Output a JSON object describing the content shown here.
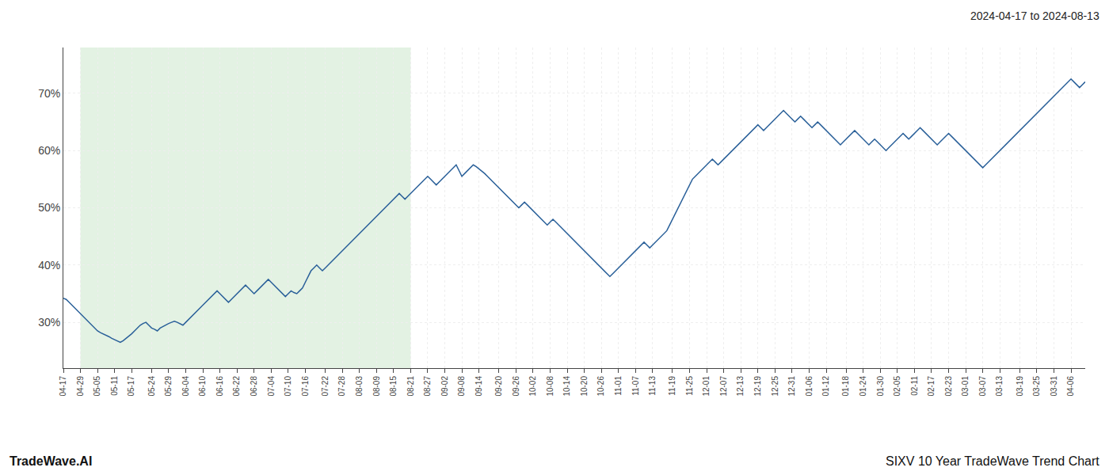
{
  "chart_data": {
    "type": "line",
    "categories": [
      "04-17",
      null,
      null,
      null,
      null,
      null,
      "04-29",
      null,
      null,
      null,
      null,
      null,
      "05-05",
      null,
      null,
      null,
      null,
      null,
      "05-11",
      null,
      null,
      null,
      null,
      null,
      "05-17",
      null,
      null,
      null,
      null,
      null,
      null,
      "05-24",
      null,
      null,
      null,
      null,
      null,
      "05-29",
      null,
      null,
      null,
      null,
      null,
      "06-04",
      null,
      null,
      null,
      null,
      null,
      "06-10",
      null,
      null,
      null,
      null,
      null,
      "06-16",
      null,
      null,
      null,
      null,
      null,
      "06-22",
      null,
      null,
      null,
      null,
      null,
      "06-28",
      null,
      null,
      null,
      null,
      null,
      "07-04",
      null,
      null,
      null,
      null,
      null,
      "07-10",
      null,
      null,
      null,
      null,
      null,
      "07-16",
      null,
      null,
      null,
      null,
      null,
      null,
      "07-22",
      null,
      null,
      null,
      null,
      null,
      "07-28",
      null,
      null,
      null,
      null,
      null,
      "08-03",
      null,
      null,
      null,
      null,
      null,
      "08-09",
      null,
      null,
      null,
      null,
      null,
      "08-15",
      null,
      null,
      null,
      null,
      null,
      "08-21",
      null,
      null,
      null,
      null,
      null,
      "08-27",
      null,
      null,
      null,
      null,
      null,
      "09-02",
      null,
      null,
      null,
      null,
      null,
      "09-08",
      null,
      null,
      null,
      null,
      null,
      "09-14",
      null,
      null,
      null,
      null,
      null,
      null,
      "09-20",
      null,
      null,
      null,
      null,
      null,
      "09-26",
      null,
      null,
      null,
      null,
      null,
      "10-02",
      null,
      null,
      null,
      null,
      null,
      "10-08",
      null,
      null,
      null,
      null,
      null,
      "10-14",
      null,
      null,
      null,
      null,
      null,
      "10-20",
      null,
      null,
      null,
      null,
      null,
      "10-26",
      null,
      null,
      null,
      null,
      null,
      "11-01",
      null,
      null,
      null,
      null,
      null,
      "11-07",
      null,
      null,
      null,
      null,
      null,
      "11-13",
      null,
      null,
      null,
      null,
      null,
      null,
      "11-19",
      null,
      null,
      null,
      null,
      null,
      "11-25",
      null,
      null,
      null,
      null,
      null,
      "12-01",
      null,
      null,
      null,
      null,
      null,
      "12-07",
      null,
      null,
      null,
      null,
      null,
      "12-13",
      null,
      null,
      null,
      null,
      null,
      "12-19",
      null,
      null,
      null,
      null,
      null,
      "12-25",
      null,
      null,
      null,
      null,
      null,
      "12-31",
      null,
      null,
      null,
      null,
      null,
      "01-06",
      null,
      null,
      null,
      null,
      null,
      "01-12",
      null,
      null,
      null,
      null,
      null,
      null,
      "01-18",
      null,
      null,
      null,
      null,
      null,
      "01-24",
      null,
      null,
      null,
      null,
      null,
      "01-30",
      null,
      null,
      null,
      null,
      null,
      "02-05",
      null,
      null,
      null,
      null,
      null,
      "02-11",
      null,
      null,
      null,
      null,
      null,
      "02-17",
      null,
      null,
      null,
      null,
      null,
      "02-23",
      null,
      null,
      null,
      null,
      null,
      "03-01",
      null,
      null,
      null,
      null,
      null,
      "03-07",
      null,
      null,
      null,
      null,
      null,
      "03-13",
      null,
      null,
      null,
      null,
      null,
      null,
      "03-19",
      null,
      null,
      null,
      null,
      null,
      "03-25",
      null,
      null,
      null,
      null,
      null,
      "03-31",
      null,
      null,
      null,
      null,
      null,
      "04-06",
      null,
      null,
      null,
      null,
      null
    ],
    "values": [
      34.2,
      34.0,
      33.5,
      33.0,
      32.5,
      32.0,
      31.5,
      31.0,
      30.5,
      30.0,
      29.5,
      29.0,
      28.5,
      28.2,
      28.0,
      27.8,
      27.5,
      27.2,
      27.0,
      26.8,
      26.5,
      26.8,
      27.2,
      27.5,
      28.0,
      28.5,
      29.0,
      29.5,
      29.8,
      30.0,
      29.5,
      29.0,
      28.8,
      28.5,
      29.0,
      29.3,
      29.5,
      29.8,
      30.0,
      30.2,
      30.0,
      29.8,
      29.5,
      30.0,
      30.5,
      31.0,
      31.5,
      32.0,
      32.5,
      33.0,
      33.5,
      34.0,
      34.5,
      35.0,
      35.5,
      35.0,
      34.5,
      34.0,
      33.5,
      34.0,
      34.5,
      35.0,
      35.5,
      36.0,
      36.5,
      36.0,
      35.5,
      35.0,
      35.5,
      36.0,
      36.5,
      37.0,
      37.5,
      37.0,
      36.5,
      36.0,
      35.5,
      35.0,
      34.5,
      35.0,
      35.5,
      35.2,
      35.0,
      35.5,
      36.0,
      37.0,
      38.0,
      39.0,
      39.5,
      40.0,
      39.5,
      39.0,
      39.5,
      40.0,
      40.5,
      41.0,
      41.5,
      42.0,
      42.5,
      43.0,
      43.5,
      44.0,
      44.5,
      45.0,
      45.5,
      46.0,
      46.5,
      47.0,
      47.5,
      48.0,
      48.5,
      49.0,
      49.5,
      50.0,
      50.5,
      51.0,
      51.5,
      52.0,
      52.5,
      52.0,
      51.5,
      52.0,
      52.5,
      53.0,
      53.5,
      54.0,
      54.5,
      55.0,
      55.5,
      55.0,
      54.5,
      54.0,
      54.5,
      55.0,
      55.5,
      56.0,
      56.5,
      57.0,
      57.5,
      56.5,
      55.5,
      56.0,
      56.5,
      57.0,
      57.5,
      57.2,
      56.8,
      56.5,
      56.0,
      55.5,
      55.0,
      54.5,
      54.0,
      53.5,
      53.0,
      52.5,
      52.0,
      51.5,
      51.0,
      50.5,
      50.0,
      50.5,
      51.0,
      50.5,
      50.0,
      49.5,
      49.0,
      48.5,
      48.0,
      47.5,
      47.0,
      47.5,
      48.0,
      47.5,
      47.0,
      46.5,
      46.0,
      45.5,
      45.0,
      44.5,
      44.0,
      43.5,
      43.0,
      42.5,
      42.0,
      41.5,
      41.0,
      40.5,
      40.0,
      39.5,
      39.0,
      38.5,
      38.0,
      38.5,
      39.0,
      39.5,
      40.0,
      40.5,
      41.0,
      41.5,
      42.0,
      42.5,
      43.0,
      43.5,
      44.0,
      43.5,
      43.0,
      43.5,
      44.0,
      44.5,
      45.0,
      45.5,
      46.0,
      47.0,
      48.0,
      49.0,
      50.0,
      51.0,
      52.0,
      53.0,
      54.0,
      55.0,
      55.5,
      56.0,
      56.5,
      57.0,
      57.5,
      58.0,
      58.5,
      58.0,
      57.5,
      58.0,
      58.5,
      59.0,
      59.5,
      60.0,
      60.5,
      61.0,
      61.5,
      62.0,
      62.5,
      63.0,
      63.5,
      64.0,
      64.5,
      64.0,
      63.5,
      64.0,
      64.5,
      65.0,
      65.5,
      66.0,
      66.5,
      67.0,
      66.5,
      66.0,
      65.5,
      65.0,
      65.5,
      66.0,
      65.5,
      65.0,
      64.5,
      64.0,
      64.5,
      65.0,
      64.5,
      64.0,
      63.5,
      63.0,
      62.5,
      62.0,
      61.5,
      61.0,
      61.5,
      62.0,
      62.5,
      63.0,
      63.5,
      63.0,
      62.5,
      62.0,
      61.5,
      61.0,
      61.5,
      62.0,
      61.5,
      61.0,
      60.5,
      60.0,
      60.5,
      61.0,
      61.5,
      62.0,
      62.5,
      63.0,
      62.5,
      62.0,
      62.5,
      63.0,
      63.5,
      64.0,
      63.5,
      63.0,
      62.5,
      62.0,
      61.5,
      61.0,
      61.5,
      62.0,
      62.5,
      63.0,
      62.5,
      62.0,
      61.5,
      61.0,
      60.5,
      60.0,
      59.5,
      59.0,
      58.5,
      58.0,
      57.5,
      57.0,
      57.5,
      58.0,
      58.5,
      59.0,
      59.5,
      60.0,
      60.5,
      61.0,
      61.5,
      62.0,
      62.5,
      63.0,
      63.5,
      64.0,
      64.5,
      65.0,
      65.5,
      66.0,
      66.5,
      67.0,
      67.5,
      68.0,
      68.5,
      69.0,
      69.5,
      70.0,
      70.5,
      71.0,
      71.5,
      72.0,
      72.5,
      72.0,
      71.5,
      71.0,
      71.5,
      72.0
    ],
    "color": "#2a6099",
    "ylim": [
      22,
      78
    ],
    "yticks": [
      {
        "value": 30,
        "label": "30%"
      },
      {
        "value": 40,
        "label": "40%"
      },
      {
        "value": 50,
        "label": "50%"
      },
      {
        "value": 60,
        "label": "60%"
      },
      {
        "value": 70,
        "label": "70%"
      }
    ],
    "grid": true,
    "shaded": {
      "from": "04-29",
      "to": "08-21",
      "color": "#c8e6c8"
    },
    "annotations": [
      "2024-04-17 to 2024-08-13",
      "TradeWave.AI",
      "SIXV 10 Year TradeWave Trend Chart"
    ]
  }
}
